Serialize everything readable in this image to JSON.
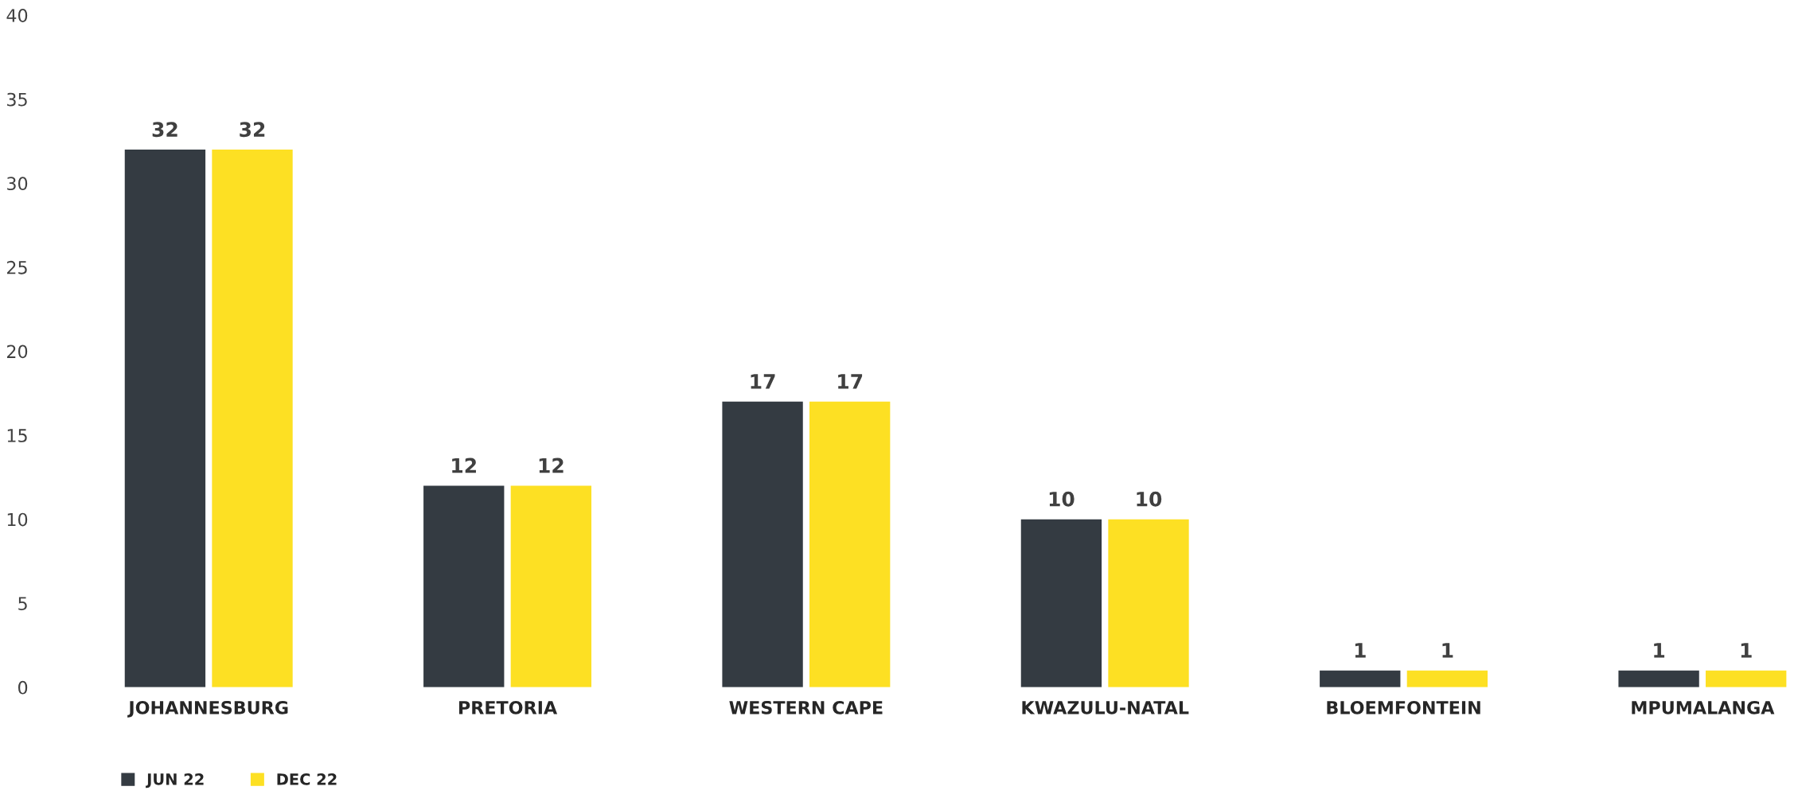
{
  "chart_data": {
    "type": "bar",
    "categories": [
      "JOHANNESBURG",
      "PRETORIA",
      "WESTERN CAPE",
      "KWAZULU-NATAL",
      "BLOEMFONTEIN",
      "MPUMALANGA"
    ],
    "series": [
      {
        "name": "JUN 22",
        "color": "#343b42",
        "values": [
          32,
          12,
          17,
          10,
          1,
          1
        ]
      },
      {
        "name": "DEC 22",
        "color": "#fde023",
        "values": [
          32,
          12,
          17,
          10,
          1,
          1
        ]
      }
    ],
    "ylim": [
      0,
      40
    ],
    "yticks": [
      0,
      5,
      10,
      15,
      20,
      25,
      30,
      35,
      40
    ],
    "grid": false,
    "legend": "bottom left",
    "data_labels": true
  }
}
